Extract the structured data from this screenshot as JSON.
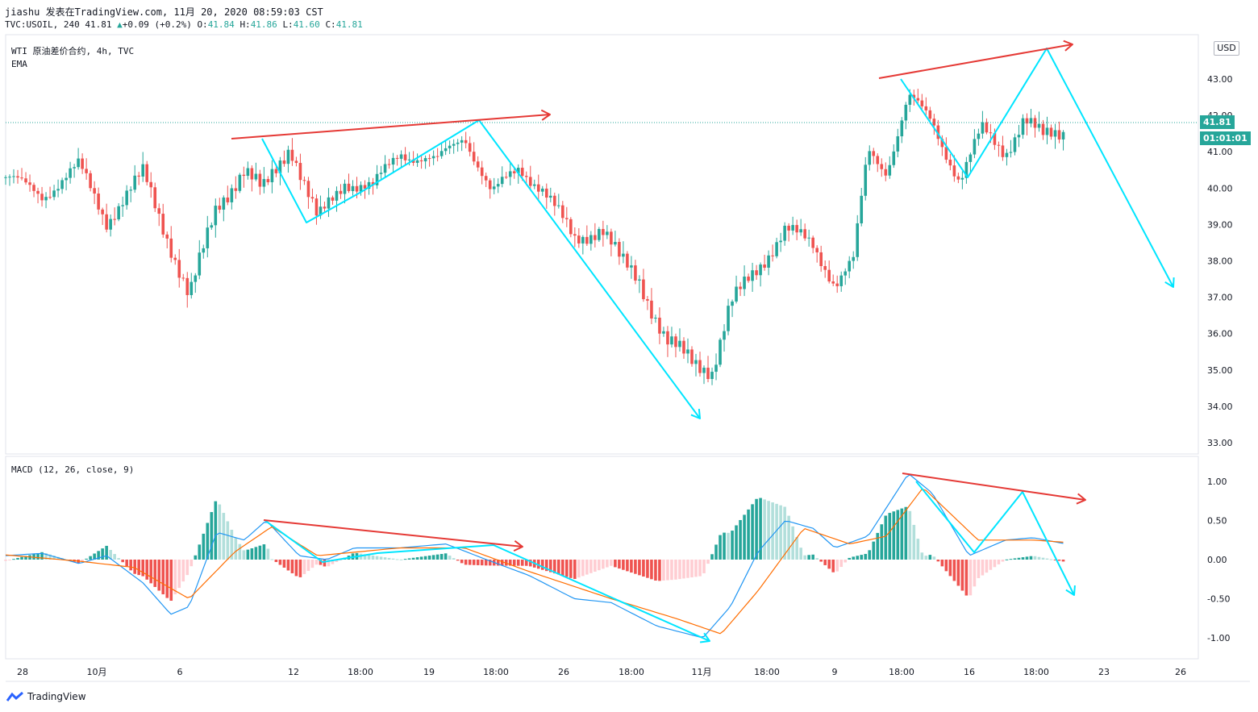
{
  "header": {
    "line1": "jiashu 发表在TradingView.com, 11月 20, 2020 08:59:03 CST",
    "symbol_prefix": "TVC:USOIL, 240 ",
    "last": "41.81",
    "change": "+0.09 (+0.2%)",
    "o_label": "O:",
    "o": "41.84",
    "h_label": "H:",
    "h": "41.86",
    "l_label": "L:",
    "l": "41.60",
    "c_label": "C:",
    "c": "41.81"
  },
  "main_pane": {
    "title": "WTI 原油差价合约, 4h, TVC",
    "indicator": "EMA",
    "currency": "USD"
  },
  "macd_pane": {
    "title": "MACD (12, 26, close, 9)"
  },
  "price_badge": "41.81",
  "timer_badge": "01:01:01",
  "brand": "TradingView",
  "colors": {
    "up": "#26a69a",
    "down": "#ef5350",
    "macd_line": "#2196f3",
    "signal_line": "#ff6d00",
    "drawing_cyan": "#00e5ff",
    "drawing_red": "#e53935"
  },
  "chart_data": [
    {
      "type": "candlestick",
      "y_ticks": [
        "33.00",
        "34.00",
        "35.00",
        "36.00",
        "37.00",
        "38.00",
        "39.00",
        "40.00",
        "41.00",
        "42.00",
        "43.00"
      ],
      "ylim": [
        32.7,
        44.1
      ],
      "x_ticks": [
        "28",
        "10月",
        "6",
        "12",
        "18:00",
        "19",
        "18:00",
        "26",
        "18:00",
        "11月",
        "18:00",
        "9",
        "18:00",
        "16",
        "18:00",
        "23",
        "26"
      ],
      "pivots": [
        {
          "x": 0,
          "y": 40.3
        },
        {
          "x": 20,
          "y": 39.8
        },
        {
          "x": 40,
          "y": 40.6
        },
        {
          "x": 55,
          "y": 39.1
        },
        {
          "x": 75,
          "y": 40.4
        },
        {
          "x": 90,
          "y": 38.4
        },
        {
          "x": 100,
          "y": 37.0
        },
        {
          "x": 115,
          "y": 39.5
        },
        {
          "x": 130,
          "y": 40.5
        },
        {
          "x": 140,
          "y": 39.9
        },
        {
          "x": 155,
          "y": 41.2
        },
        {
          "x": 170,
          "y": 39.1
        },
        {
          "x": 185,
          "y": 40.2
        },
        {
          "x": 200,
          "y": 40.0
        },
        {
          "x": 215,
          "y": 41.0
        },
        {
          "x": 235,
          "y": 40.7
        },
        {
          "x": 250,
          "y": 41.5
        },
        {
          "x": 265,
          "y": 39.8
        },
        {
          "x": 280,
          "y": 40.6
        },
        {
          "x": 292,
          "y": 40.0
        },
        {
          "x": 310,
          "y": 38.6
        },
        {
          "x": 325,
          "y": 38.9
        },
        {
          "x": 335,
          "y": 38.0
        },
        {
          "x": 345,
          "y": 37.5
        },
        {
          "x": 360,
          "y": 35.8
        },
        {
          "x": 375,
          "y": 35.2
        },
        {
          "x": 385,
          "y": 35.0
        },
        {
          "x": 395,
          "y": 36.8
        },
        {
          "x": 410,
          "y": 37.8
        },
        {
          "x": 425,
          "y": 38.9
        },
        {
          "x": 440,
          "y": 38.4
        },
        {
          "x": 452,
          "y": 37.4
        },
        {
          "x": 462,
          "y": 38.0
        },
        {
          "x": 470,
          "y": 41.0
        },
        {
          "x": 480,
          "y": 40.5
        },
        {
          "x": 492,
          "y": 42.5
        },
        {
          "x": 505,
          "y": 41.8
        },
        {
          "x": 520,
          "y": 40.2
        },
        {
          "x": 532,
          "y": 41.6
        },
        {
          "x": 545,
          "y": 41.0
        },
        {
          "x": 555,
          "y": 41.9
        },
        {
          "x": 565,
          "y": 41.4
        },
        {
          "x": 578,
          "y": 41.6
        }
      ],
      "xlim": [
        0,
        650
      ]
    },
    {
      "type": "macd",
      "y_ticks": [
        "1.00",
        "0.50",
        "0.00",
        "-0.50",
        "-1.00"
      ],
      "ylim": [
        -1.3,
        1.3
      ],
      "macd_pivots": [
        {
          "x": 0,
          "y": 0.05
        },
        {
          "x": 20,
          "y": 0.08
        },
        {
          "x": 40,
          "y": -0.05
        },
        {
          "x": 55,
          "y": 0.05
        },
        {
          "x": 75,
          "y": -0.3
        },
        {
          "x": 90,
          "y": -0.7
        },
        {
          "x": 100,
          "y": -0.6
        },
        {
          "x": 115,
          "y": 0.35
        },
        {
          "x": 130,
          "y": 0.25
        },
        {
          "x": 142,
          "y": 0.5
        },
        {
          "x": 160,
          "y": 0.05
        },
        {
          "x": 175,
          "y": 0.0
        },
        {
          "x": 190,
          "y": 0.15
        },
        {
          "x": 215,
          "y": 0.15
        },
        {
          "x": 240,
          "y": 0.2
        },
        {
          "x": 262,
          "y": 0.0
        },
        {
          "x": 285,
          "y": -0.2
        },
        {
          "x": 310,
          "y": -0.5
        },
        {
          "x": 330,
          "y": -0.55
        },
        {
          "x": 355,
          "y": -0.85
        },
        {
          "x": 380,
          "y": -1.0
        },
        {
          "x": 395,
          "y": -0.6
        },
        {
          "x": 410,
          "y": 0.1
        },
        {
          "x": 425,
          "y": 0.5
        },
        {
          "x": 440,
          "y": 0.4
        },
        {
          "x": 452,
          "y": 0.15
        },
        {
          "x": 470,
          "y": 0.3
        },
        {
          "x": 492,
          "y": 1.1
        },
        {
          "x": 505,
          "y": 0.85
        },
        {
          "x": 525,
          "y": 0.05
        },
        {
          "x": 545,
          "y": 0.25
        },
        {
          "x": 560,
          "y": 0.28
        },
        {
          "x": 578,
          "y": 0.2
        }
      ],
      "signal_pivots": [
        {
          "x": 0,
          "y": 0.06
        },
        {
          "x": 40,
          "y": -0.02
        },
        {
          "x": 70,
          "y": -0.1
        },
        {
          "x": 100,
          "y": -0.5
        },
        {
          "x": 125,
          "y": 0.1
        },
        {
          "x": 145,
          "y": 0.42
        },
        {
          "x": 170,
          "y": 0.05
        },
        {
          "x": 215,
          "y": 0.15
        },
        {
          "x": 250,
          "y": 0.15
        },
        {
          "x": 285,
          "y": -0.15
        },
        {
          "x": 330,
          "y": -0.5
        },
        {
          "x": 365,
          "y": -0.75
        },
        {
          "x": 390,
          "y": -0.95
        },
        {
          "x": 410,
          "y": -0.4
        },
        {
          "x": 435,
          "y": 0.4
        },
        {
          "x": 460,
          "y": 0.2
        },
        {
          "x": 480,
          "y": 0.3
        },
        {
          "x": 500,
          "y": 0.92
        },
        {
          "x": 530,
          "y": 0.25
        },
        {
          "x": 560,
          "y": 0.25
        },
        {
          "x": 578,
          "y": 0.22
        }
      ]
    }
  ]
}
